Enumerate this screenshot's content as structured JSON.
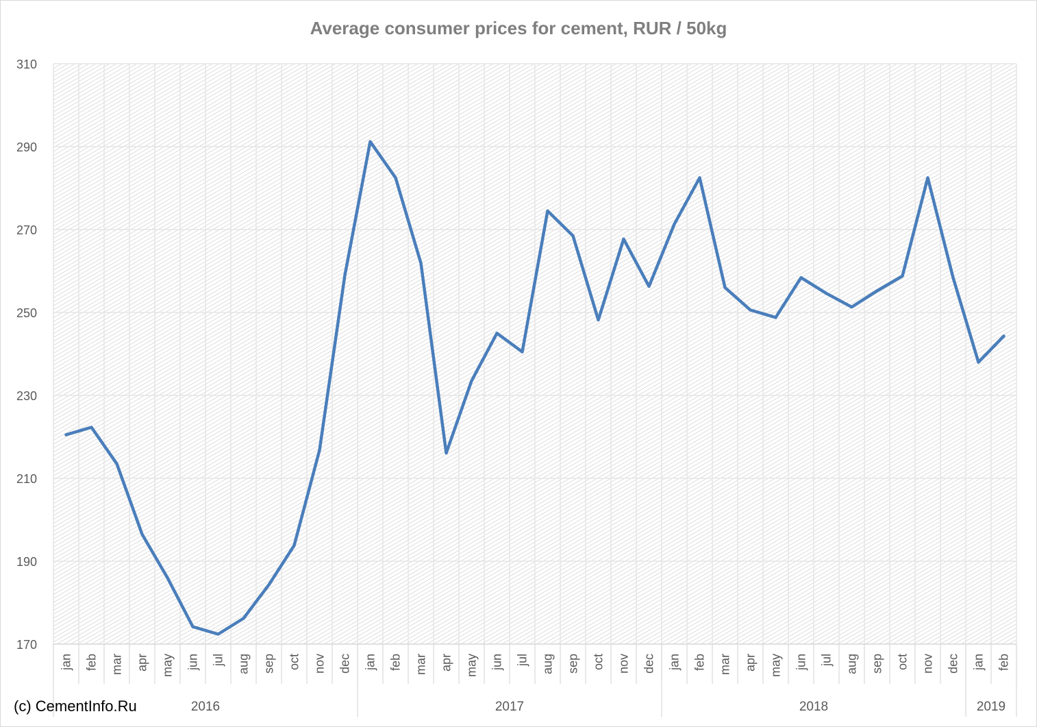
{
  "chart_data": {
    "type": "line",
    "title": "Average consumer prices for cement, RUR / 50kg",
    "xlabel": "",
    "ylabel": "",
    "ylim": [
      170,
      310
    ],
    "yticks": [
      170,
      190,
      210,
      230,
      250,
      270,
      290,
      310
    ],
    "grid": true,
    "legend": "none",
    "color": "#4a7ebb",
    "years": [
      {
        "label": "2016",
        "months": 12
      },
      {
        "label": "2017",
        "months": 12
      },
      {
        "label": "2018",
        "months": 12
      },
      {
        "label": "2019",
        "months": 2
      }
    ],
    "categories": [
      "jan",
      "feb",
      "mar",
      "apr",
      "may",
      "jun",
      "jul",
      "aug",
      "sep",
      "oct",
      "nov",
      "dec",
      "jan",
      "feb",
      "mar",
      "apr",
      "may",
      "jun",
      "jul",
      "aug",
      "sep",
      "oct",
      "nov",
      "dec",
      "jan",
      "feb",
      "mar",
      "apr",
      "may",
      "jun",
      "jul",
      "aug",
      "sep",
      "oct",
      "nov",
      "dec",
      "jan",
      "feb"
    ],
    "values": [
      220.5,
      222.3,
      213.5,
      196.5,
      186,
      174.2,
      172.4,
      176.2,
      184.3,
      193.8,
      216.8,
      259,
      291.2,
      282.5,
      261.9,
      216.1,
      233.5,
      245,
      240.5,
      274.5,
      268.5,
      248.2,
      267.7,
      256.3,
      271.3,
      282.5,
      256,
      250.6,
      248.8,
      258.4,
      254.6,
      251.3,
      255.2,
      258.8,
      282.5,
      258.4,
      238,
      244.3
    ]
  },
  "footer": {
    "copyright": "(c) CementInfo.Ru"
  }
}
